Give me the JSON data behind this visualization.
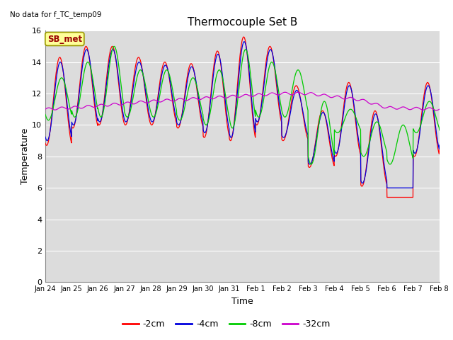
{
  "title": "Thermocouple Set B",
  "no_data_text": "No data for f_TC_temp09",
  "xlabel": "Time",
  "ylabel": "Temperature",
  "ylim": [
    0,
    16
  ],
  "yticks": [
    0,
    2,
    4,
    6,
    8,
    10,
    12,
    14,
    16
  ],
  "plot_bg_color": "#dcdcdc",
  "fig_bg_color": "#ffffff",
  "series_colors": {
    "-2cm": "#ff0000",
    "-4cm": "#0000dd",
    "-8cm": "#00cc00",
    "-32cm": "#cc00cc"
  },
  "legend_label_box": "SB_met",
  "legend_box_bg": "#ffff99",
  "legend_box_border": "#999900",
  "legend_box_text": "#990000",
  "x_tick_labels": [
    "Jan 24",
    "Jan 25",
    "Jan 26",
    "Jan 27",
    "Jan 28",
    "Jan 29",
    "Jan 30",
    "Jan 31",
    "Feb 1",
    "Feb 2",
    "Feb 3",
    "Feb 4",
    "Feb 5",
    "Feb 6",
    "Feb 7",
    "Feb 8"
  ]
}
